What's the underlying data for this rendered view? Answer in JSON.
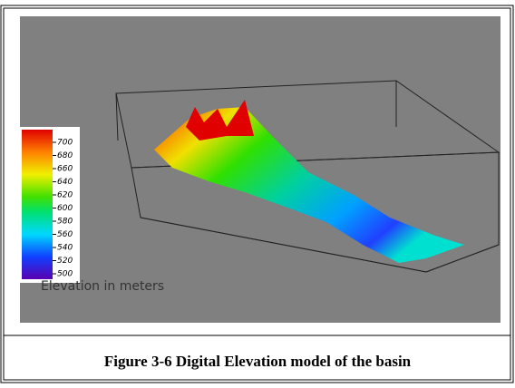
{
  "figure": {
    "colorbar": {
      "ticks": [
        700,
        680,
        660,
        640,
        620,
        600,
        580,
        560,
        540,
        520,
        500
      ],
      "label": "Elevation in meters"
    },
    "caption": "Figure 3-6 Digital Elevation  model of the basin"
  }
}
